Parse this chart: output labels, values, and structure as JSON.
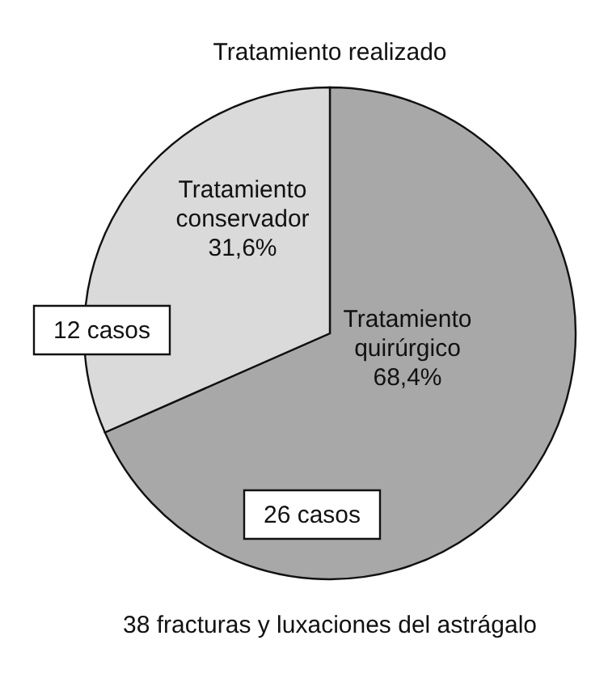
{
  "chart_data": {
    "type": "pie",
    "title": "Tratamiento realizado",
    "categories": [
      "Tratamiento quirúrgico",
      "Tratamiento conservador"
    ],
    "values": [
      68.4,
      31.6
    ],
    "value_labels": [
      "68,4%",
      "31,6%"
    ],
    "colors": [
      "#a8a8a8",
      "#dadada"
    ],
    "annotations": [
      "26 casos",
      "12 casos",
      "38 fracturas y luxaciones del astrágalo"
    ]
  }
}
